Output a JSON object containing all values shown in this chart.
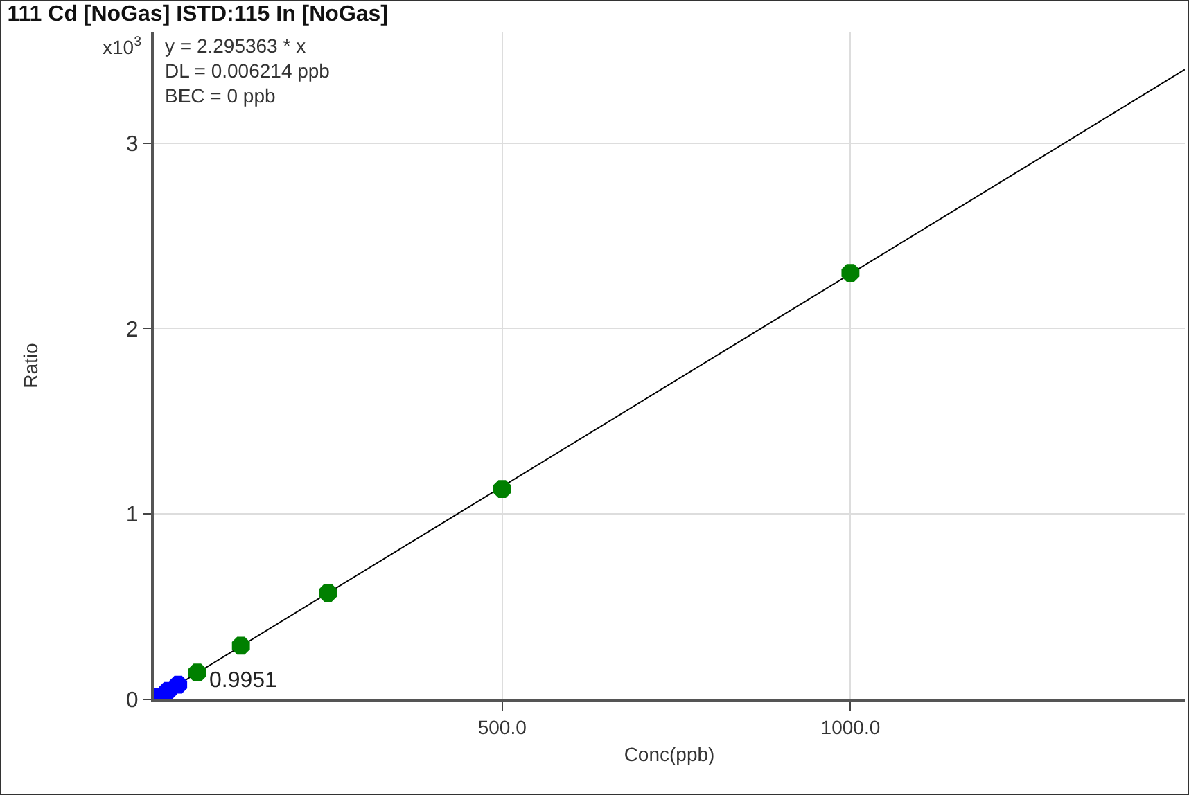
{
  "chart_data": {
    "type": "scatter",
    "title": "111 Cd [NoGas] ISTD:115 In [NoGas]",
    "xlabel": "Conc(ppb)",
    "ylabel": "Ratio",
    "annotations": [
      "x10$^{3}$",
      "y = 2.295363 * x",
      "DL = 0.006214 ppb",
      "BEC = 0 ppb",
      {
        "text": "0.9951",
        "x": 75,
        "y": 0.1
      }
    ],
    "xlim": [
      0,
      1480
    ],
    "xticks": [
      {
        "value": 500,
        "label": "500.0"
      },
      {
        "value": 1000,
        "label": "1000.0"
      }
    ],
    "ylim": [
      0,
      3.6
    ],
    "yticks": [
      0,
      1,
      2,
      3
    ],
    "grid": true,
    "marker": "circle",
    "series": [
      {
        "type": "line",
        "color": "#000000",
        "x": [
          0,
          1480
        ],
        "values": [
          0,
          3.397
        ],
        "marker": "none"
      },
      {
        "color": "#008000",
        "x": [
          62.5,
          125,
          250,
          500,
          1000
        ],
        "values": [
          0.145,
          0.29,
          0.575,
          1.135,
          2.3
        ]
      },
      {
        "color": "#0000ff",
        "x": [
          5,
          20,
          35
        ],
        "values": [
          0.012,
          0.046,
          0.08
        ]
      }
    ]
  }
}
